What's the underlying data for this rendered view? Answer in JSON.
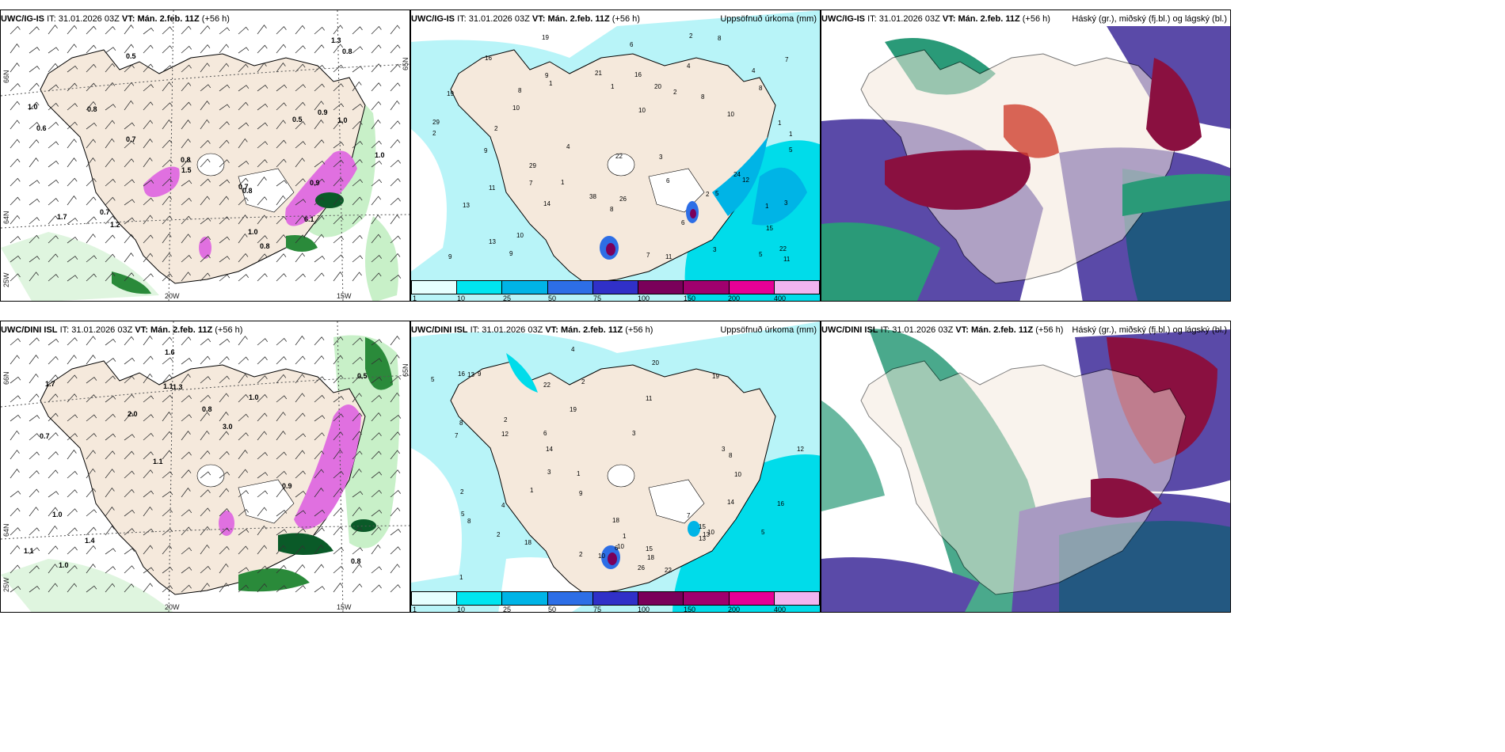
{
  "rows": [
    {
      "model": "UWC/IG-IS",
      "it_label": "IT:",
      "it_value": "31.01.2026 03Z",
      "vt_label": "VT:",
      "vt_value": "Mán. 2.feb. 11Z",
      "lead": "(+56 h)"
    },
    {
      "model": "UWC/DINI ISL",
      "it_label": "IT:",
      "it_value": "31.01.2026 03Z",
      "vt_label": "VT:",
      "vt_value": "Mán. 2.feb. 11Z",
      "lead": "(+56 h)"
    }
  ],
  "panel_titles": {
    "precip": "Uppsöfnuð úrkoma (mm)",
    "clouds": "Háský (gr.), miðský (fj.bl.) og lágský (bl.)"
  },
  "axis_labels": {
    "lat66": "66N",
    "lat64": "64N",
    "lon25": "25W",
    "lon20": "20W",
    "lon15": "15W",
    "lat65": "65N"
  },
  "legend": {
    "ticks": [
      "1",
      "10",
      "25",
      "50",
      "75",
      "100",
      "150",
      "200",
      "400"
    ],
    "colors": [
      "#e6ffff",
      "#00e5f0",
      "#00b4e6",
      "#2d6ee6",
      "#3030c8",
      "#7a005a",
      "#a0006e",
      "#e60096",
      "#f0b4f0"
    ]
  },
  "map_colors": {
    "land": "#f5e9dc",
    "sea": "#ffffff",
    "snow_land": "#ffffff",
    "precip_light": "#b8f4f8",
    "precip_mid": "#00dcea",
    "precip_dark": "#00a8e0",
    "wind_green_light": "#c8f0c8",
    "wind_green_mid": "#40b850",
    "wind_green_dark": "#0a5a28",
    "wind_pink": "#e070e0",
    "cloud_high": "#5a4aa8",
    "cloud_mid": "#2a9a78",
    "cloud_low": "#1a5a7a",
    "cloud_dark": "#8a1040"
  },
  "precip_numbers_top": [
    "1",
    "1",
    "2",
    "1",
    "4",
    "3",
    "1",
    "2",
    "1",
    "4",
    "10",
    "12",
    "10",
    "14",
    "13",
    "22",
    "29",
    "29",
    "19",
    "21",
    "22",
    "16",
    "13",
    "11",
    "10",
    "8",
    "9",
    "6",
    "7",
    "7",
    "9",
    "11",
    "9",
    "6",
    "2",
    "2",
    "5",
    "6",
    "8",
    "24",
    "11",
    "19",
    "38",
    "26",
    "15",
    "16",
    "20",
    "8",
    "9",
    "10",
    "5",
    "8",
    "3",
    "4",
    "7",
    "8",
    "1",
    "2",
    "5",
    "3"
  ],
  "precip_numbers_bottom": [
    "2",
    "1",
    "3",
    "5",
    "12",
    "8",
    "10",
    "2",
    "3",
    "2",
    "4",
    "5",
    "10",
    "22",
    "19",
    "18",
    "15",
    "13",
    "16",
    "8",
    "9",
    "10",
    "12",
    "14",
    "15",
    "18",
    "20",
    "26",
    "22",
    "6",
    "16",
    "7",
    "14",
    "18",
    "13",
    "19",
    "13",
    "10",
    "1",
    "1",
    "1",
    "2",
    "3",
    "5",
    "7",
    "11",
    "8",
    "9",
    "4",
    "2",
    "6"
  ],
  "wind_values_top": [
    "0.8",
    "0.5",
    "0.7",
    "0.8",
    "0.9",
    "1.0",
    "1.0",
    "0.7",
    "1.5",
    "1.2",
    "1.7",
    "1.0",
    "0.8",
    "0.7",
    "0.5",
    "1.3",
    "0.6",
    "0.8",
    "0.9",
    "1.0",
    "6.1",
    "0.8"
  ],
  "wind_values_bottom": [
    "0.8",
    "0.7",
    "0.5",
    "1.1",
    "1.0",
    "1.0",
    "1.1",
    "0.8",
    "1.0",
    "2.0",
    "1.1",
    "1.4",
    "1.3",
    "3.0",
    "0.9",
    "1.7",
    "1.6"
  ]
}
